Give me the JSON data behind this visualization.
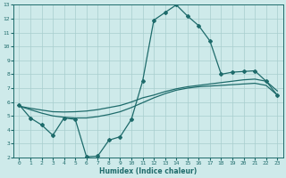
{
  "xlabel": "Humidex (Indice chaleur)",
  "xlim": [
    -0.5,
    23.5
  ],
  "ylim": [
    2,
    13
  ],
  "xticks": [
    0,
    1,
    2,
    3,
    4,
    5,
    6,
    7,
    8,
    9,
    10,
    11,
    12,
    13,
    14,
    15,
    16,
    17,
    18,
    19,
    20,
    21,
    22,
    23
  ],
  "yticks": [
    2,
    3,
    4,
    5,
    6,
    7,
    8,
    9,
    10,
    11,
    12,
    13
  ],
  "background_color": "#ceeaea",
  "line_color": "#1e6b6b",
  "line1_x": [
    0,
    1,
    2,
    3,
    4,
    5,
    6,
    7,
    8,
    9,
    10,
    11,
    12,
    13,
    14,
    15,
    16,
    17,
    18,
    19,
    20,
    21,
    22,
    23
  ],
  "line1_y": [
    5.8,
    4.85,
    4.35,
    3.6,
    4.85,
    4.75,
    2.05,
    2.1,
    3.25,
    3.5,
    4.75,
    7.5,
    11.9,
    12.45,
    13.0,
    12.2,
    11.5,
    10.4,
    8.0,
    8.15,
    8.2,
    8.25,
    7.5,
    6.5
  ],
  "line2_x": [
    0,
    1,
    2,
    3,
    4,
    5,
    6,
    7,
    8,
    9,
    10,
    11,
    12,
    13,
    14,
    15,
    16,
    17,
    18,
    19,
    20,
    21,
    22,
    23
  ],
  "line2_y": [
    5.7,
    5.55,
    5.42,
    5.3,
    5.28,
    5.3,
    5.35,
    5.45,
    5.6,
    5.75,
    6.0,
    6.3,
    6.5,
    6.75,
    6.95,
    7.1,
    7.2,
    7.3,
    7.4,
    7.5,
    7.6,
    7.65,
    7.5,
    6.8
  ],
  "line3_x": [
    0,
    1,
    2,
    3,
    4,
    5,
    6,
    7,
    8,
    9,
    10,
    11,
    12,
    13,
    14,
    15,
    16,
    17,
    18,
    19,
    20,
    21,
    22,
    23
  ],
  "line3_y": [
    5.7,
    5.45,
    5.2,
    5.0,
    4.9,
    4.85,
    4.85,
    4.95,
    5.1,
    5.3,
    5.6,
    5.95,
    6.3,
    6.6,
    6.85,
    7.0,
    7.1,
    7.15,
    7.2,
    7.25,
    7.3,
    7.35,
    7.2,
    6.5
  ]
}
